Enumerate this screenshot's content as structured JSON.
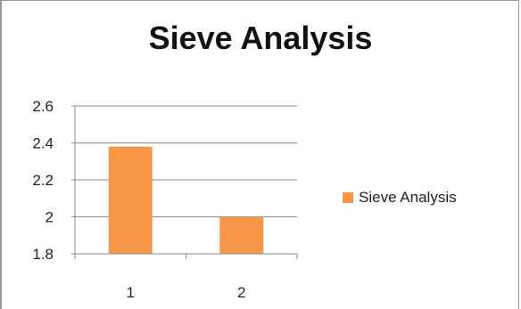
{
  "chart_data": {
    "type": "bar",
    "title": "Sieve Analysis",
    "categories": [
      "1",
      "2"
    ],
    "series": [
      {
        "name": "Sieve Analysis",
        "values": [
          2.38,
          2.0
        ],
        "color": "#f79646"
      }
    ],
    "ylim": [
      1.8,
      2.6
    ],
    "yticks": [
      "1.8",
      "2",
      "2.2",
      "2.4",
      "2.6"
    ],
    "xlabel": "",
    "ylabel": "",
    "grid": true,
    "legend": "right"
  }
}
